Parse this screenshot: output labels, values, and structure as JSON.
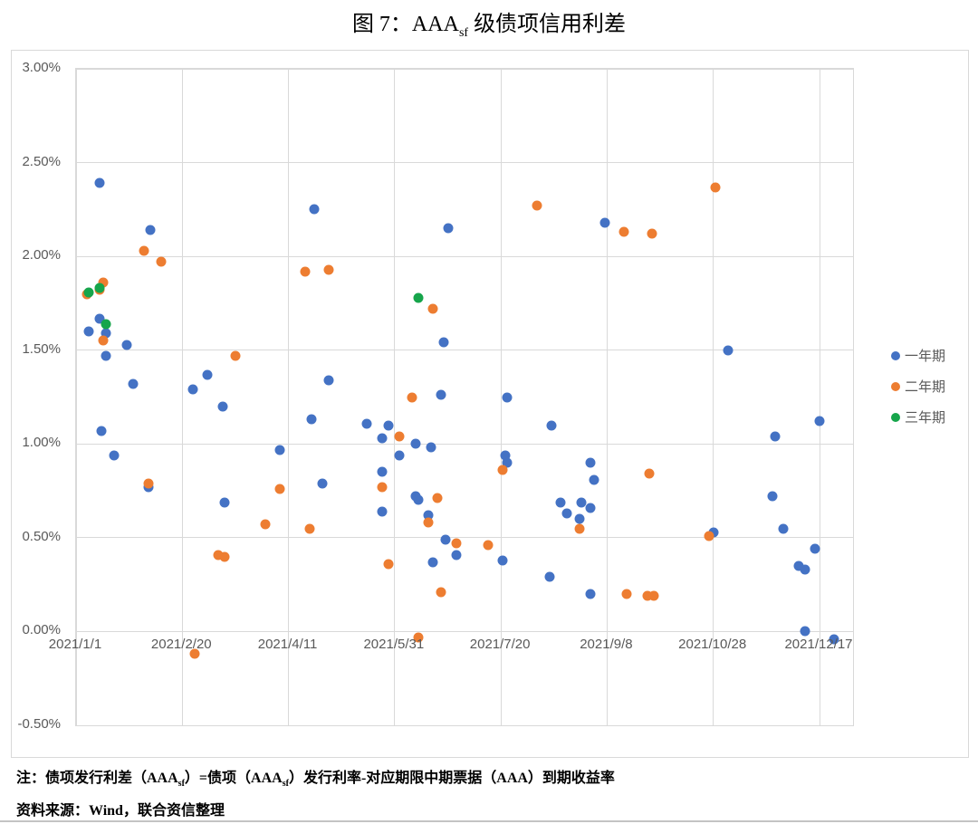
{
  "title": {
    "prefix": "图 7：AAA",
    "sub": "sf",
    "suffix": " 级债项信用利差"
  },
  "note": {
    "p1": "注：债项发行利差（AAA",
    "s1": "sf",
    "p2": "）=债项（AAA",
    "s2": "sf",
    "p3": "）发行利率-对应期限中期票据（AAA）到期收益率"
  },
  "source": "资料来源：Wind，联合资信整理",
  "colors": {
    "series_1y": "#4472C4",
    "series_2y": "#ED7D31",
    "series_3y": "#16A54B",
    "gridline": "#D9D9D9",
    "tick_text": "#595959"
  },
  "chart_data": {
    "type": "scatter",
    "title": "图 7：AAAsf 级债项信用利差",
    "grid": true,
    "legend_position": "right",
    "x_axis": {
      "unit": "days since 2021/1/1",
      "range_days": [
        0,
        366
      ],
      "ticks": [
        {
          "label": "2021/1/1",
          "day": 0
        },
        {
          "label": "2021/2/20",
          "day": 50
        },
        {
          "label": "2021/4/11",
          "day": 100
        },
        {
          "label": "2021/5/31",
          "day": 150
        },
        {
          "label": "2021/7/20",
          "day": 200
        },
        {
          "label": "2021/9/8",
          "day": 250
        },
        {
          "label": "2021/10/28",
          "day": 300
        },
        {
          "label": "2021/12/17",
          "day": 350
        }
      ]
    },
    "y_axis": {
      "unit": "percent",
      "range": [
        -0.5,
        3.0
      ],
      "ticks": [
        {
          "label": "3.00%",
          "value": 3.0
        },
        {
          "label": "2.50%",
          "value": 2.5
        },
        {
          "label": "2.00%",
          "value": 2.0
        },
        {
          "label": "1.50%",
          "value": 1.5
        },
        {
          "label": "1.00%",
          "value": 1.0
        },
        {
          "label": "0.50%",
          "value": 0.5
        },
        {
          "label": "0.00%",
          "value": 0.0
        },
        {
          "label": "-0.50%",
          "value": -0.5
        }
      ]
    },
    "series": [
      {
        "name": "一年期",
        "color": "#4472C4",
        "points": [
          [
            6,
            1.6
          ],
          [
            11,
            2.39
          ],
          [
            11,
            1.67
          ],
          [
            12,
            1.07
          ],
          [
            14,
            1.59
          ],
          [
            14,
            1.47
          ],
          [
            18,
            0.94
          ],
          [
            24,
            1.53
          ],
          [
            27,
            1.32
          ],
          [
            34,
            0.77
          ],
          [
            35,
            2.14
          ],
          [
            55,
            1.29
          ],
          [
            62,
            1.37
          ],
          [
            69,
            1.2
          ],
          [
            70,
            0.69
          ],
          [
            96,
            0.97
          ],
          [
            111,
            1.13
          ],
          [
            112,
            2.25
          ],
          [
            116,
            0.79
          ],
          [
            119,
            1.34
          ],
          [
            137,
            1.11
          ],
          [
            144,
            1.03
          ],
          [
            144,
            0.85
          ],
          [
            144,
            0.64
          ],
          [
            147,
            1.1
          ],
          [
            152,
            0.94
          ],
          [
            160,
            1.0
          ],
          [
            160,
            0.72
          ],
          [
            161,
            0.7
          ],
          [
            166,
            0.62
          ],
          [
            167,
            0.98
          ],
          [
            168,
            0.37
          ],
          [
            172,
            1.26
          ],
          [
            173,
            1.54
          ],
          [
            174,
            0.49
          ],
          [
            175,
            2.15
          ],
          [
            179,
            0.41
          ],
          [
            201,
            0.38
          ],
          [
            202,
            0.94
          ],
          [
            203,
            1.25
          ],
          [
            203,
            0.9
          ],
          [
            223,
            0.29
          ],
          [
            224,
            1.1
          ],
          [
            228,
            0.69
          ],
          [
            231,
            0.63
          ],
          [
            237,
            0.6
          ],
          [
            238,
            0.69
          ],
          [
            242,
            0.9
          ],
          [
            242,
            0.66
          ],
          [
            242,
            0.2
          ],
          [
            244,
            0.81
          ],
          [
            249,
            2.18
          ],
          [
            300,
            0.53
          ],
          [
            307,
            1.5
          ],
          [
            328,
            0.72
          ],
          [
            329,
            1.04
          ],
          [
            333,
            0.55
          ],
          [
            340,
            0.35
          ],
          [
            343,
            0.33
          ],
          [
            343,
            0.0
          ],
          [
            348,
            0.44
          ],
          [
            350,
            1.12
          ],
          [
            357,
            -0.04
          ]
        ]
      },
      {
        "name": "二年期",
        "color": "#ED7D31",
        "points": [
          [
            5,
            1.8
          ],
          [
            11,
            1.82
          ],
          [
            13,
            1.86
          ],
          [
            13,
            1.55
          ],
          [
            32,
            2.03
          ],
          [
            34,
            0.79
          ],
          [
            40,
            1.97
          ],
          [
            56,
            -0.12
          ],
          [
            67,
            0.41
          ],
          [
            70,
            0.4
          ],
          [
            75,
            1.47
          ],
          [
            89,
            0.57
          ],
          [
            96,
            0.76
          ],
          [
            108,
            1.92
          ],
          [
            110,
            0.55
          ],
          [
            119,
            1.93
          ],
          [
            144,
            0.77
          ],
          [
            147,
            0.36
          ],
          [
            152,
            1.04
          ],
          [
            158,
            1.25
          ],
          [
            161,
            -0.03
          ],
          [
            166,
            0.58
          ],
          [
            168,
            1.72
          ],
          [
            170,
            0.71
          ],
          [
            172,
            0.21
          ],
          [
            179,
            0.47
          ],
          [
            194,
            0.46
          ],
          [
            201,
            0.86
          ],
          [
            217,
            2.27
          ],
          [
            237,
            0.55
          ],
          [
            258,
            2.13
          ],
          [
            259,
            0.2
          ],
          [
            269,
            0.19
          ],
          [
            270,
            0.84
          ],
          [
            271,
            2.12
          ],
          [
            272,
            0.19
          ],
          [
            298,
            0.51
          ],
          [
            301,
            2.37
          ]
        ]
      },
      {
        "name": "三年期",
        "color": "#16A54B",
        "points": [
          [
            6,
            1.81
          ],
          [
            11,
            1.83
          ],
          [
            14,
            1.64
          ],
          [
            161,
            1.78
          ]
        ]
      }
    ]
  }
}
